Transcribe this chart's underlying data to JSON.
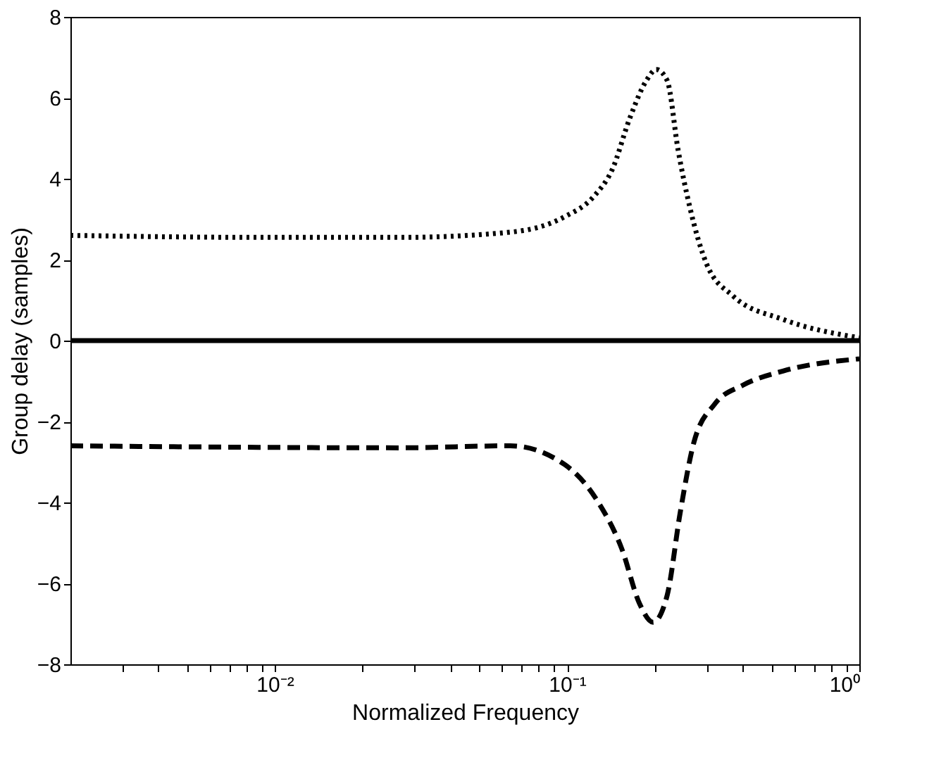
{
  "chart_data": {
    "type": "line",
    "xlabel": "Normalized Frequency",
    "ylabel": "Group delay (samples)",
    "log": "x",
    "grid": false,
    "legend": false,
    "marker": "none",
    "xlim": [
      0.002,
      1
    ],
    "ylim": [
      -8,
      8
    ],
    "xticks": [
      {
        "value": 0.003,
        "label": null
      },
      {
        "value": 0.004,
        "label": null
      },
      {
        "value": 0.005,
        "label": null
      },
      {
        "value": 0.006,
        "label": null
      },
      {
        "value": 0.007,
        "label": null
      },
      {
        "value": 0.008,
        "label": null
      },
      {
        "value": 0.009,
        "label": null
      },
      {
        "value": 0.01,
        "label": "10⁻²"
      },
      {
        "value": 0.02,
        "label": null
      },
      {
        "value": 0.03,
        "label": null
      },
      {
        "value": 0.04,
        "label": null
      },
      {
        "value": 0.05,
        "label": null
      },
      {
        "value": 0.06,
        "label": null
      },
      {
        "value": 0.07,
        "label": null
      },
      {
        "value": 0.08,
        "label": null
      },
      {
        "value": 0.09,
        "label": null
      },
      {
        "value": 0.1,
        "label": "10⁻¹"
      },
      {
        "value": 0.2,
        "label": null
      },
      {
        "value": 0.3,
        "label": null
      },
      {
        "value": 0.4,
        "label": null
      },
      {
        "value": 0.5,
        "label": null
      },
      {
        "value": 0.6,
        "label": null
      },
      {
        "value": 0.7,
        "label": null
      },
      {
        "value": 0.8,
        "label": null
      },
      {
        "value": 0.9,
        "label": null
      },
      {
        "value": 1,
        "label": "10⁰"
      }
    ],
    "yticks": [
      -8,
      -6,
      -4,
      -2,
      0,
      2,
      4,
      6,
      8
    ],
    "series": [
      {
        "color": "#000000",
        "line_style": "dotted",
        "x": [
          0.002,
          0.0092,
          0.027,
          0.064,
          0.098,
          0.123,
          0.143,
          0.164,
          0.187,
          0.202,
          0.22,
          0.24,
          0.263,
          0.3,
          0.37,
          0.55,
          1
        ],
        "values": [
          2.6,
          2.55,
          2.55,
          2.68,
          3.06,
          3.55,
          4.24,
          5.5,
          6.43,
          6.7,
          6.43,
          4.7,
          3.3,
          1.9,
          1.1,
          0.52,
          0.07
        ]
      },
      {
        "color": "#000000",
        "line_style": "solid",
        "x": [
          0.002,
          0.1,
          1
        ],
        "values": [
          0,
          0,
          0
        ]
      },
      {
        "color": "#000000",
        "line_style": "dashed",
        "x": [
          0.002,
          0.027,
          0.064,
          0.098,
          0.128,
          0.154,
          0.177,
          0.197,
          0.22,
          0.244,
          0.272,
          0.32,
          0.4,
          0.55,
          1
        ],
        "values": [
          -2.6,
          -2.65,
          -2.6,
          -3.06,
          -4.0,
          -5.15,
          -6.5,
          -6.96,
          -6.3,
          -4.24,
          -2.5,
          -1.57,
          -1.1,
          -0.75,
          -0.45
        ]
      }
    ]
  }
}
